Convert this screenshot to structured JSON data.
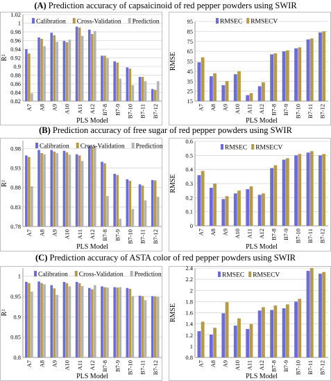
{
  "panels": [
    {
      "tag": "(A)",
      "title": "Prediction accuracy of capsaicinoid of red pepper powders using SWIR"
    },
    {
      "tag": "(B)",
      "title": "Prediction accuracy of free sugar of red pepper powders using SWIR"
    },
    {
      "tag": "(C)",
      "title": "Prediction accuracy of ASTA color of red pepper powders using SWIR"
    }
  ],
  "colors": {
    "calibration": "#6b6bd9",
    "cross_validation": "#b59a4a",
    "prediction": "#b3b3b3",
    "rmsec": "#6b6bd9",
    "rmsecv": "#b59a4a"
  },
  "chart_data": [
    {
      "type": "bar",
      "panel": "A",
      "xlabel": "PLS Model",
      "ylabel": "R²",
      "ylim": [
        0.82,
        1.02
      ],
      "yticks": [
        "0.82",
        "0.84",
        "0.86",
        "0.88",
        "0.9",
        "0.92",
        "0.94",
        "0.96",
        "0.98",
        "1",
        "1.02"
      ],
      "legend_position": "top",
      "categories": [
        "A7",
        "A8",
        "A9",
        "A10",
        "A11",
        "A12",
        "B7-8",
        "B7-9",
        "B7-10",
        "B7-11",
        "B7-12"
      ],
      "series": [
        {
          "name": "Calibration",
          "values": [
            0.94,
            0.967,
            0.978,
            0.959,
            0.992,
            0.985,
            0.925,
            0.912,
            0.898,
            0.876,
            0.848
          ]
        },
        {
          "name": "Cross-Validation",
          "values": [
            0.93,
            0.964,
            0.972,
            0.956,
            0.99,
            0.975,
            0.925,
            0.909,
            0.895,
            0.876,
            0.846
          ]
        },
        {
          "name": "Prediction",
          "values": [
            0.838,
            0.947,
            0.957,
            0.962,
            0.971,
            0.982,
            0.919,
            0.872,
            0.857,
            0.866,
            0.866
          ]
        }
      ]
    },
    {
      "type": "bar",
      "panel": "A",
      "xlabel": "PLS Model",
      "ylabel": "RMSE",
      "ylim": [
        15,
        95
      ],
      "yticks": [
        "15",
        "25",
        "35",
        "45",
        "55",
        "65",
        "75",
        "85",
        "95"
      ],
      "legend_position": "top-left",
      "categories": [
        "A7",
        "A8",
        "A9",
        "A10",
        "A11",
        "A12",
        "B7-8",
        "B7-9",
        "B7-10",
        "B7-11",
        "B7-12"
      ],
      "series": [
        {
          "name": "RMSEC",
          "values": [
            54,
            40,
            31,
            42,
            21,
            30,
            62,
            65,
            68,
            77,
            84
          ]
        },
        {
          "name": "RMSECV",
          "values": [
            59,
            43,
            35,
            45,
            23,
            34,
            63,
            66,
            69,
            78,
            85
          ]
        }
      ]
    },
    {
      "type": "bar",
      "panel": "B",
      "xlabel": "PLS Model",
      "ylabel": "R²",
      "ylim": [
        0.78,
        1.0
      ],
      "yticks": [
        "0.78",
        "0.83",
        "0.88",
        "0.93",
        "0.98"
      ],
      "legend_position": "top",
      "categories": [
        "A7",
        "A8",
        "A9",
        "A10",
        "A11",
        "A12",
        "B7-8",
        "B7-9",
        "B7-10",
        "B7-11",
        "B7-12"
      ],
      "series": [
        {
          "name": "Calibration",
          "values": [
            0.962,
            0.976,
            0.976,
            0.974,
            0.965,
            0.986,
            0.946,
            0.915,
            0.901,
            0.888,
            0.899
          ]
        },
        {
          "name": "Cross-Validation",
          "values": [
            0.958,
            0.968,
            0.972,
            0.97,
            0.962,
            0.983,
            0.942,
            0.912,
            0.897,
            0.885,
            0.898
          ]
        },
        {
          "name": "Prediction",
          "values": [
            0.883,
            0.965,
            0.968,
            0.964,
            0.948,
            0.986,
            0.858,
            0.8,
            0.825,
            0.847,
            0.856
          ]
        }
      ]
    },
    {
      "type": "bar",
      "panel": "B",
      "xlabel": "PLS Model",
      "ylabel": "RMSE",
      "ylim": [
        0,
        0.6
      ],
      "yticks": [
        "0",
        "0.1",
        "0.2",
        "0.3",
        "0.4",
        "0.5",
        "0.6"
      ],
      "legend_position": "top",
      "categories": [
        "A7",
        "A8",
        "A9",
        "A10",
        "A11",
        "A12",
        "B7-8",
        "B7-9",
        "B7-10",
        "B7-11",
        "B7-12"
      ],
      "series": [
        {
          "name": "RMSEC",
          "values": [
            0.36,
            0.27,
            0.19,
            0.23,
            0.26,
            0.22,
            0.41,
            0.47,
            0.5,
            0.52,
            0.5
          ]
        },
        {
          "name": "RMSECV",
          "values": [
            0.39,
            0.3,
            0.21,
            0.25,
            0.28,
            0.23,
            0.43,
            0.48,
            0.51,
            0.53,
            0.51
          ]
        }
      ]
    },
    {
      "type": "bar",
      "panel": "C",
      "xlabel": "PLS Model",
      "ylabel": "R²",
      "ylim": [
        0.8,
        1.02
      ],
      "yticks": [
        "0.8",
        "0.85",
        "0.9",
        "0.95",
        "1"
      ],
      "legend_position": "top",
      "categories": [
        "A7",
        "A8",
        "A9",
        "A10",
        "A11",
        "A12",
        "B7-8",
        "B7-9",
        "B7-10",
        "B7-11",
        "B7-12"
      ],
      "series": [
        {
          "name": "Calibration",
          "values": [
            0.986,
            0.987,
            0.978,
            0.986,
            0.986,
            0.971,
            0.975,
            0.973,
            0.971,
            0.952,
            0.951
          ]
        },
        {
          "name": "Cross-Validation",
          "values": [
            0.983,
            0.983,
            0.97,
            0.983,
            0.983,
            0.968,
            0.973,
            0.972,
            0.969,
            0.951,
            0.95
          ]
        },
        {
          "name": "Prediction",
          "values": [
            0.962,
            0.98,
            0.954,
            0.975,
            0.976,
            0.978,
            0.972,
            0.973,
            0.951,
            0.941,
            0.949
          ]
        }
      ]
    },
    {
      "type": "bar",
      "panel": "C",
      "xlabel": "PLS Model",
      "ylabel": "RMSE",
      "ylim": [
        0.8,
        2.4
      ],
      "yticks": [
        "0.8",
        "1",
        "1.2",
        "1.4",
        "1.6",
        "1.8",
        "2",
        "2.2",
        "2.4"
      ],
      "legend_position": "top",
      "categories": [
        "A7",
        "A8",
        "A9",
        "A10",
        "A11",
        "A12",
        "B7-8",
        "B7-9",
        "B7-10",
        "B7-11",
        "B7-12"
      ],
      "series": [
        {
          "name": "RMSEC",
          "values": [
            1.27,
            1.21,
            1.59,
            1.37,
            1.31,
            1.64,
            1.65,
            1.68,
            1.8,
            2.35,
            2.3
          ]
        },
        {
          "name": "RMSECV",
          "values": [
            1.44,
            1.33,
            1.79,
            1.5,
            1.4,
            1.7,
            1.73,
            1.75,
            1.85,
            2.4,
            2.33
          ]
        }
      ]
    }
  ]
}
